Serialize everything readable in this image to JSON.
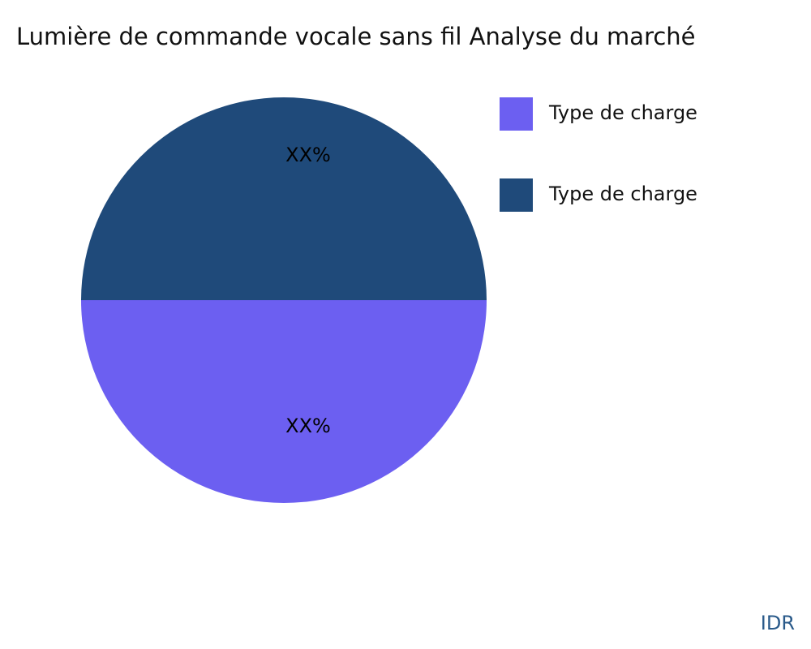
{
  "chart_data": {
    "type": "pie",
    "title": "Lumière de commande vocale sans fil Analyse du marché",
    "series": [
      {
        "name": "Type de charge",
        "color": "#6c5ff1",
        "values": [
          50
        ],
        "value_labels": [
          "XX%"
        ]
      },
      {
        "name": "Type de charge",
        "color": "#1f4a7a",
        "values": [
          50
        ],
        "value_labels": [
          "XX%"
        ]
      }
    ],
    "legend": "top-right",
    "watermark": "IDR"
  }
}
